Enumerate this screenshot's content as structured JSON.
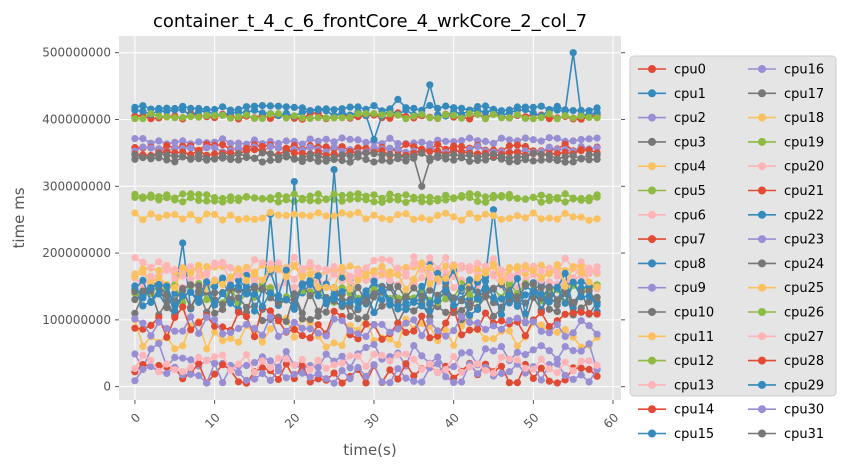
{
  "chart_data": {
    "type": "line",
    "title": "container_t_4_c_6_frontCore_4_wrkCore_2_col_7",
    "xlabel": "time(s)",
    "ylabel": "time ms",
    "xlim": [
      -2,
      61
    ],
    "ylim": [
      -20000000,
      525000000
    ],
    "x_ticks": [
      0,
      10,
      20,
      30,
      40,
      50,
      60
    ],
    "x_tick_labels": [
      "0",
      "10",
      "20",
      "30",
      "40",
      "50",
      "60"
    ],
    "y_ticks": [
      0,
      100000000,
      200000000,
      300000000,
      400000000,
      500000000
    ],
    "y_tick_labels": [
      "0",
      "100000000",
      "200000000",
      "300000000",
      "400000000",
      "500000000"
    ],
    "grid": true,
    "legend_position": "right",
    "legend_columns": 2,
    "colors": [
      "#E24A33",
      "#348ABD",
      "#988ED5",
      "#777777",
      "#FBC15E",
      "#8EBA42",
      "#FFB5B8"
    ],
    "series": [
      {
        "name": "cpu0",
        "base": 405000000,
        "spread": 5000000,
        "spikes": []
      },
      {
        "name": "cpu1",
        "base": 417000000,
        "spread": 4000000,
        "spikes": [
          [
            33,
            430000000
          ]
        ]
      },
      {
        "name": "cpu2",
        "base": 368000000,
        "spread": 5000000,
        "spikes": []
      },
      {
        "name": "cpu3",
        "base": 340000000,
        "spread": 4000000,
        "spikes": [
          [
            36,
            300000000
          ]
        ]
      },
      {
        "name": "cpu4",
        "base": 80000000,
        "spread": 25000000,
        "spikes": []
      },
      {
        "name": "cpu5",
        "base": 280000000,
        "spread": 4000000,
        "spikes": []
      },
      {
        "name": "cpu6",
        "base": 160000000,
        "spread": 15000000,
        "spikes": []
      },
      {
        "name": "cpu7",
        "base": 358000000,
        "spread": 5000000,
        "spikes": []
      },
      {
        "name": "cpu8",
        "base": 140000000,
        "spread": 25000000,
        "spikes": [
          [
            6,
            215000000
          ],
          [
            17,
            258000000
          ],
          [
            20,
            307000000
          ],
          [
            25,
            325000000
          ],
          [
            37,
            185000000
          ],
          [
            45,
            265000000
          ]
        ]
      },
      {
        "name": "cpu9",
        "base": 45000000,
        "spread": 20000000,
        "spikes": []
      },
      {
        "name": "cpu10",
        "base": 130000000,
        "spread": 25000000,
        "spikes": []
      },
      {
        "name": "cpu11",
        "base": 175000000,
        "spread": 8000000,
        "spikes": []
      },
      {
        "name": "cpu12",
        "base": 140000000,
        "spread": 15000000,
        "spikes": []
      },
      {
        "name": "cpu13",
        "base": 170000000,
        "spread": 15000000,
        "spikes": []
      },
      {
        "name": "cpu14",
        "base": 20000000,
        "spread": 15000000,
        "spikes": []
      },
      {
        "name": "cpu15",
        "base": 410000000,
        "spread": 5000000,
        "spikes": [
          [
            30,
            370000000
          ],
          [
            37,
            452000000
          ],
          [
            55,
            500000000
          ]
        ]
      },
      {
        "name": "cpu16",
        "base": 355000000,
        "spread": 5000000,
        "spikes": []
      },
      {
        "name": "cpu17",
        "base": 120000000,
        "spread": 25000000,
        "spikes": []
      },
      {
        "name": "cpu18",
        "base": 255000000,
        "spread": 6000000,
        "spikes": []
      },
      {
        "name": "cpu19",
        "base": 405000000,
        "spread": 4000000,
        "spikes": []
      },
      {
        "name": "cpu20",
        "base": 180000000,
        "spread": 15000000,
        "spikes": []
      },
      {
        "name": "cpu21",
        "base": 350000000,
        "spread": 5000000,
        "spikes": []
      },
      {
        "name": "cpu22",
        "base": 140000000,
        "spread": 35000000,
        "spikes": []
      },
      {
        "name": "cpu23",
        "base": 20000000,
        "spread": 15000000,
        "spikes": []
      },
      {
        "name": "cpu24",
        "base": 140000000,
        "spread": 15000000,
        "spikes": []
      },
      {
        "name": "cpu25",
        "base": 165000000,
        "spread": 20000000,
        "spikes": []
      },
      {
        "name": "cpu26",
        "base": 285000000,
        "spread": 4000000,
        "spikes": []
      },
      {
        "name": "cpu27",
        "base": 35000000,
        "spread": 15000000,
        "spikes": []
      },
      {
        "name": "cpu28",
        "base": 95000000,
        "spread": 25000000,
        "spikes": []
      },
      {
        "name": "cpu29",
        "base": 140000000,
        "spread": 20000000,
        "spikes": []
      },
      {
        "name": "cpu30",
        "base": 90000000,
        "spread": 15000000,
        "spikes": []
      },
      {
        "name": "cpu31",
        "base": 345000000,
        "spread": 5000000,
        "spikes": []
      }
    ]
  }
}
